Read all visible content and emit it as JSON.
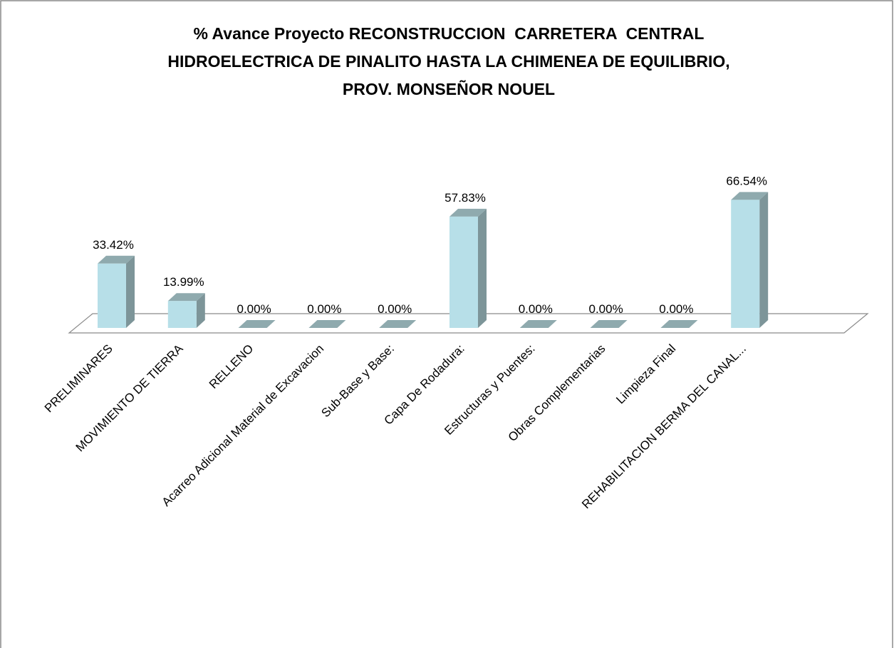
{
  "chart_data": {
    "type": "bar3d",
    "title": [
      "% Avance Proyecto RECONSTRUCCION  CARRETERA  CENTRAL",
      "HIDROELECTRICA DE PINALITO HASTA LA CHIMENEA DE EQUILIBRIO,",
      "PROV. MONSEÑOR NOUEL"
    ],
    "categories": [
      "PRELIMINARES",
      "MOVIMIENTO DE TIERRA",
      "RELLENO",
      "Acarreo Adicional Material de Excavacion",
      "Sub-Base y Base:",
      "Capa De Rodadura:",
      "Estructuras y Puentes:",
      "Obras Complementarias",
      "Limpieza Final",
      "REHABILITACION BERMA DEL CANAL..."
    ],
    "values": [
      33.42,
      13.99,
      0,
      0,
      0,
      57.83,
      0,
      0,
      0,
      66.54
    ],
    "value_labels": [
      "33.42%",
      "13.99%",
      "0.00%",
      "0.00%",
      "0.00%",
      "57.83%",
      "0.00%",
      "0.00%",
      "0.00%",
      "66.54%"
    ],
    "color": "#b7dfe8"
  }
}
